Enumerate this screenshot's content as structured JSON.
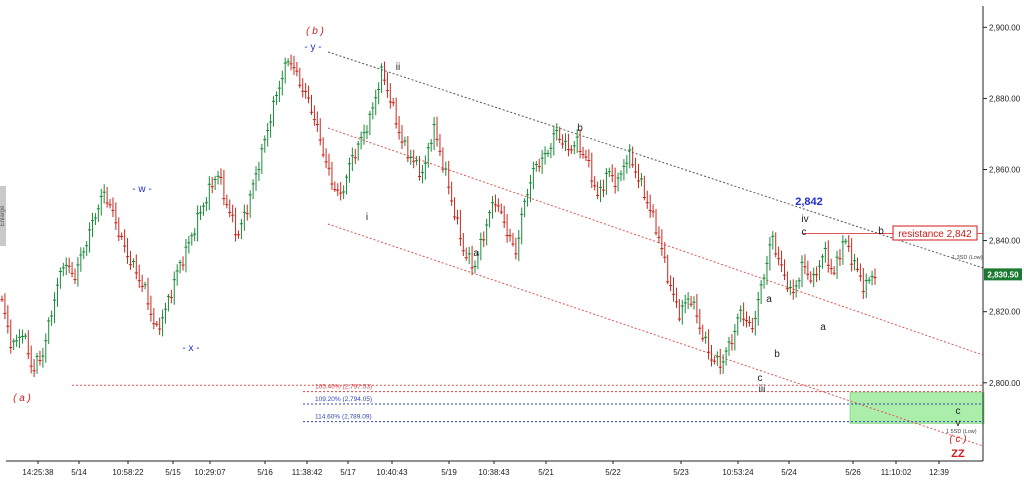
{
  "chart_data": {
    "type": "line",
    "series": [
      {
        "values": [
          [
            "14:25:38",
            2822
          ],
          [
            "14:40",
            2810
          ],
          [
            "15:00",
            2815
          ],
          [
            "15:20",
            2803
          ],
          [
            "5/14",
            2808
          ],
          [
            "09:30",
            2823
          ],
          [
            "10:00",
            2834
          ],
          [
            "10:30",
            2829
          ],
          [
            "10:58:22",
            2838
          ],
          [
            "11:30",
            2847
          ],
          [
            "12:00",
            2853
          ],
          [
            "12:30",
            2846
          ],
          [
            "13:00",
            2838
          ],
          [
            "13:30",
            2831
          ],
          [
            "14:00",
            2825
          ],
          [
            "5/15",
            2815
          ],
          [
            "09:45",
            2821
          ],
          [
            "10:10",
            2830
          ],
          [
            "10:29:07",
            2838
          ],
          [
            "11:00",
            2846
          ],
          [
            "11:30",
            2852
          ],
          [
            "12:00",
            2859
          ],
          [
            "12:30",
            2850
          ],
          [
            "13:00",
            2841
          ],
          [
            "5/16",
            2850
          ],
          [
            "10:30",
            2862
          ],
          [
            "11:00",
            2873
          ],
          [
            "11:20",
            2883
          ],
          [
            "11:38:42",
            2892
          ],
          [
            "12:00",
            2885
          ],
          [
            "12:30",
            2878
          ],
          [
            "13:00",
            2868
          ],
          [
            "5/17",
            2858
          ],
          [
            "10:00",
            2852
          ],
          [
            "10:20",
            2862
          ],
          [
            "10:40:43",
            2869
          ],
          [
            "11:00",
            2876
          ],
          [
            "11:20",
            2887
          ],
          [
            "11:40",
            2878
          ],
          [
            "12:00",
            2868
          ],
          [
            "12:30",
            2862
          ],
          [
            "13:00",
            2858
          ],
          [
            "5/19",
            2873
          ],
          [
            "09:40",
            2861
          ],
          [
            "10:00",
            2848
          ],
          [
            "10:20",
            2837
          ],
          [
            "10:38:43",
            2833
          ],
          [
            "11:00",
            2842
          ],
          [
            "11:30",
            2852
          ],
          [
            "12:00",
            2845
          ],
          [
            "12:30",
            2836
          ],
          [
            "5/21",
            2852
          ],
          [
            "10:00",
            2862
          ],
          [
            "10:30",
            2864
          ],
          [
            "11:00",
            2870
          ],
          [
            "11:30",
            2866
          ],
          [
            "12:00",
            2868
          ],
          [
            "5/22",
            2862
          ],
          [
            "10:00",
            2852
          ],
          [
            "10:30",
            2860
          ],
          [
            "11:00",
            2856
          ],
          [
            "11:30",
            2864
          ],
          [
            "12:00",
            2858
          ],
          [
            "12:30",
            2850
          ],
          [
            "5/23",
            2840
          ],
          [
            "10:00",
            2828
          ],
          [
            "10:30",
            2820
          ],
          [
            "10:53:24",
            2824
          ],
          [
            "11:20",
            2815
          ],
          [
            "11:40",
            2808
          ],
          [
            "12:00",
            2805
          ],
          [
            "12:30",
            2811
          ],
          [
            "13:00",
            2821
          ],
          [
            "13:30",
            2815
          ],
          [
            "5/24",
            2827
          ],
          [
            "10:00",
            2841
          ],
          [
            "10:30",
            2832
          ],
          [
            "11:00",
            2824
          ],
          [
            "11:30",
            2833
          ],
          [
            "12:00",
            2829
          ],
          [
            "12:30",
            2837
          ],
          [
            "5/26",
            2830
          ],
          [
            "10:30",
            2841
          ],
          [
            "11:10:02",
            2834
          ],
          [
            "11:30",
            2826
          ],
          [
            "12:00",
            2831
          ]
        ]
      }
    ],
    "x_ticks": [
      "14:25:38",
      "5/14",
      "10:58:22",
      "5/15",
      "10:29:07",
      "5/16",
      "11:38:42",
      "5/17",
      "10:40:43",
      "5/19",
      "10:38:43",
      "5/21",
      "5/22",
      "5/23",
      "10:53:24",
      "5/24",
      "5/26",
      "11:10:02",
      "12:39"
    ],
    "y_ticks": [
      "2,900.00",
      "2,880.00",
      "2,860.00",
      "2,840.00",
      "2,820.00",
      "2,800.00"
    ],
    "ylim": [
      2778,
      2906
    ],
    "price_tag": "2,830.50",
    "side_label": "Enlarge",
    "colors": {
      "bull": "#1b8a3a",
      "bear": "#c8281e",
      "wave_blue": "#1f2fd0",
      "wave_red": "#d21a1a",
      "target_zone": "#aaeeaa"
    },
    "wave_labels": [
      {
        "text": "( a )",
        "color": "red"
      },
      {
        "text": "- w -",
        "color": "blue"
      },
      {
        "text": "- x -",
        "color": "blue"
      },
      {
        "text": "( b )",
        "color": "red"
      },
      {
        "text": "- y -",
        "color": "blue"
      },
      {
        "text": "i",
        "color": "black"
      },
      {
        "text": "ii",
        "color": "black"
      },
      {
        "text": "a",
        "color": "black"
      },
      {
        "text": "b",
        "color": "black"
      },
      {
        "text": "c",
        "color": "black"
      },
      {
        "text": "iii",
        "color": "black"
      },
      {
        "text": "a",
        "color": "black"
      },
      {
        "text": "b",
        "color": "black"
      },
      {
        "text": "iv",
        "color": "black"
      },
      {
        "text": "c",
        "color": "black"
      },
      {
        "text": "2,842",
        "color": "blue"
      },
      {
        "text": "a",
        "color": "black"
      },
      {
        "text": "b",
        "color": "black"
      },
      {
        "text": "c",
        "color": "black"
      },
      {
        "text": "v",
        "color": "black"
      },
      {
        "text": "( c )",
        "color": "red"
      },
      {
        "text": "ZZ",
        "color": "red"
      }
    ],
    "resistance_label": "resistance 2,842",
    "channel_label": "1 3SD (Low)",
    "zone_label": "1 5SD (Low)",
    "fib_levels": [
      {
        "label": "105.40% (2,797.53)",
        "value": 2797.53
      },
      {
        "label": "109.20% (2,794.05)",
        "value": 2794.05
      },
      {
        "label": "114.60% (2,789.09)",
        "value": 2789.09
      }
    ]
  }
}
